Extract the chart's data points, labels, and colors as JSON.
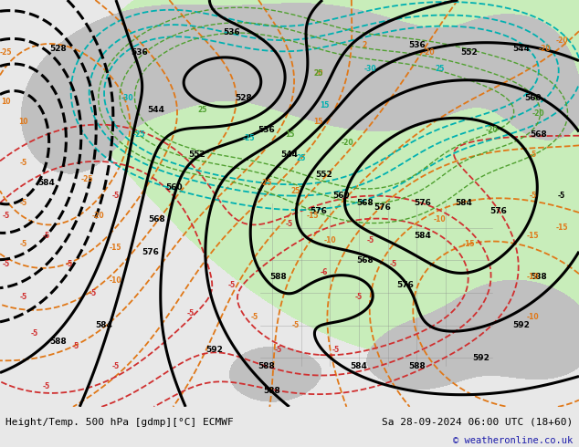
{
  "title_left": "Height/Temp. 500 hPa [gdmp][°C] ECMWF",
  "title_right": "Sa 28-09-2024 06:00 UTC (18+60)",
  "copyright": "© weatheronline.co.uk",
  "bg_color": "#e8e8e8",
  "map_bg_color": "#e0e0e0",
  "green_fill_color": "#c8edba",
  "land_gray_color": "#c0c0c0",
  "bottom_bar_color": "#e8e8e8",
  "contour_black_color": "#000000",
  "contour_orange_color": "#e07818",
  "contour_red_color": "#d03030",
  "contour_teal_color": "#00b0b0",
  "contour_green_color": "#50a030",
  "fig_width": 6.34,
  "fig_height": 4.9,
  "dpi": 100
}
